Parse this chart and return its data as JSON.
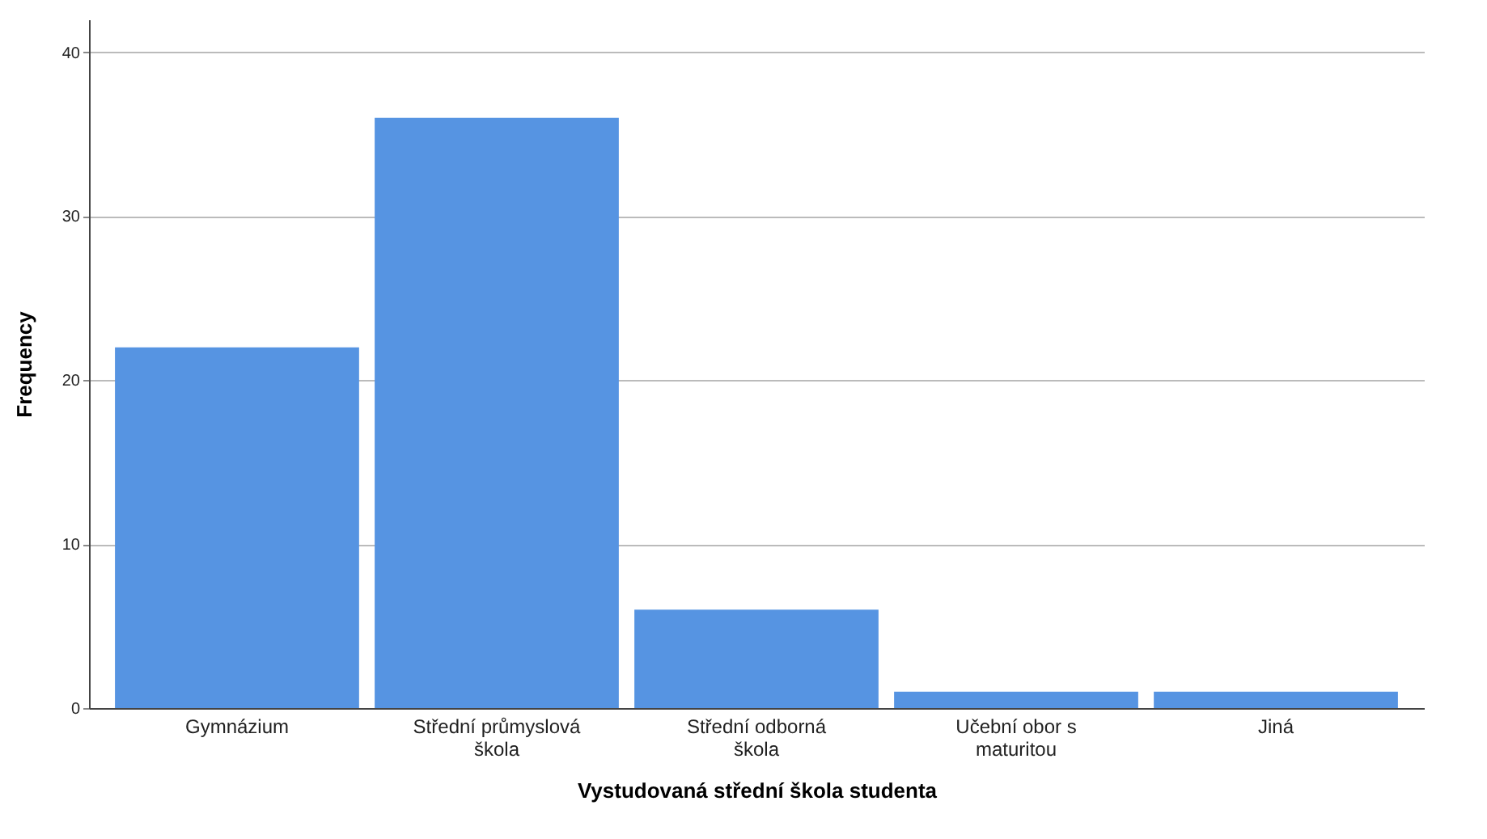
{
  "chart_data": {
    "type": "bar",
    "categories": [
      "Gymnázium",
      "Střední průmyslová škola",
      "Střední odborná škola",
      "Učební obor s maturitou",
      "Jiná"
    ],
    "values": [
      22,
      36,
      6,
      1,
      1
    ],
    "color": "#5694e2",
    "xlabel": "Vystudovaná střední škola studenta",
    "ylabel": "Frequency",
    "ylim": [
      0,
      42
    ],
    "yticks": [
      0,
      10,
      20,
      30,
      40
    ],
    "grid": "y"
  }
}
